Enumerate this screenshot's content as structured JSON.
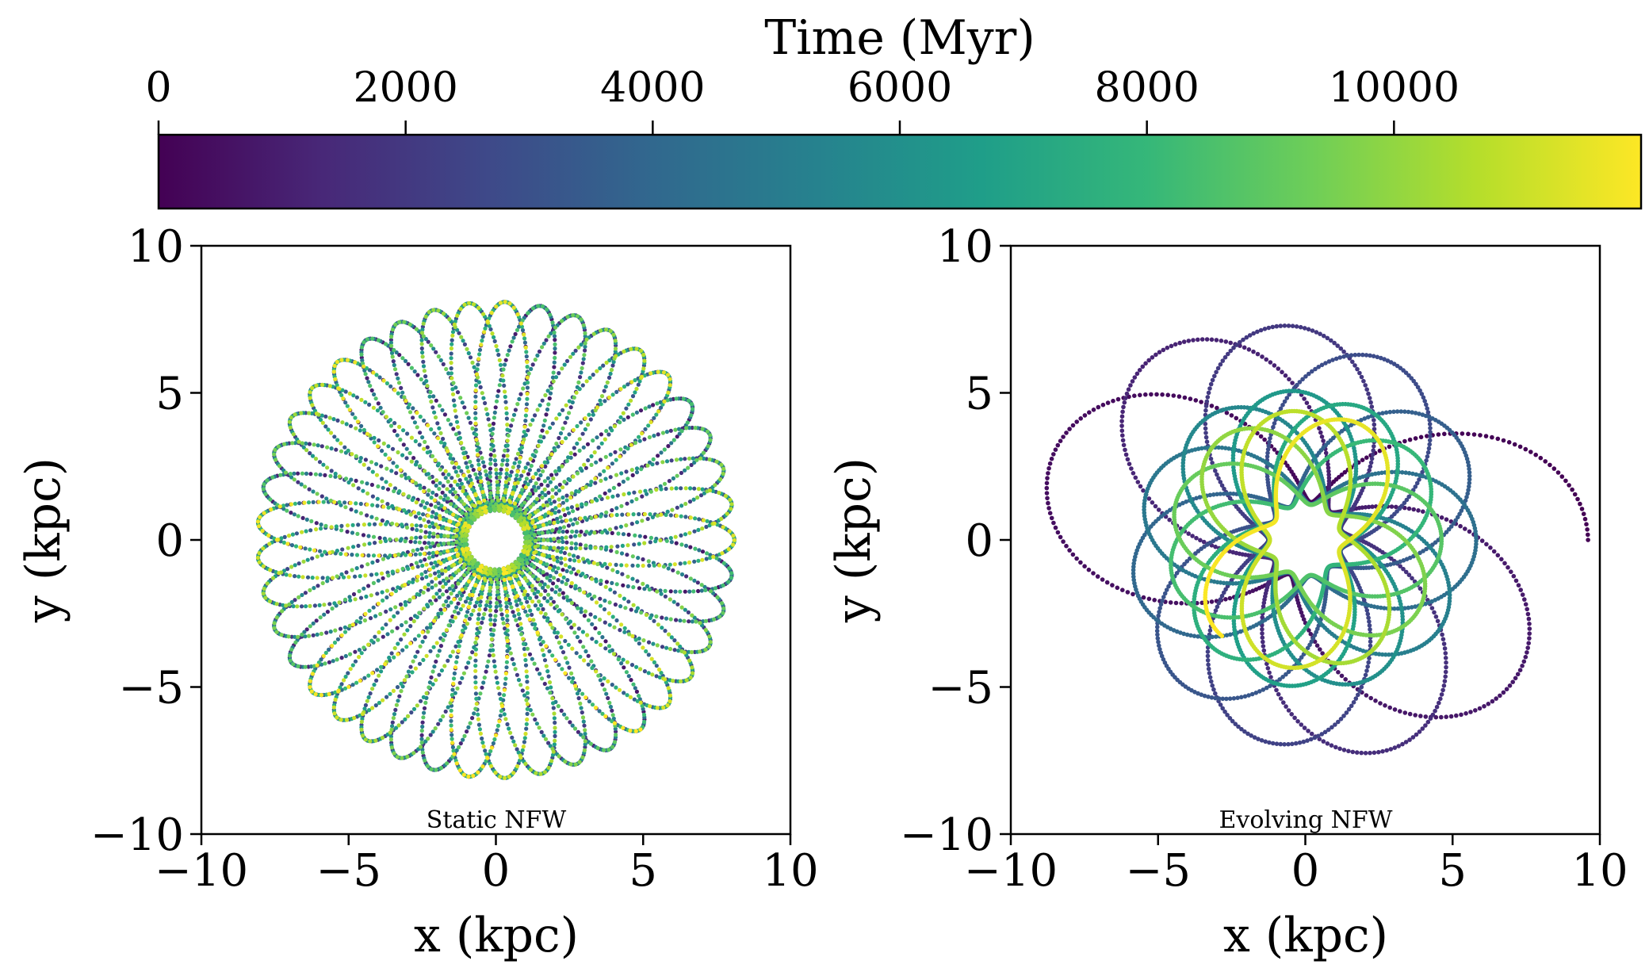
{
  "colorbar": {
    "label": "Time (Myr)",
    "range": [
      0,
      12000
    ],
    "ticks": [
      0,
      2000,
      4000,
      6000,
      8000,
      10000
    ],
    "tick_labels": [
      "0",
      "2000",
      "4000",
      "6000",
      "8000",
      "10000"
    ],
    "colormap": "viridis",
    "colormap_stops": [
      "#440154",
      "#482878",
      "#3e4989",
      "#31688e",
      "#26828e",
      "#1f9e89",
      "#35b779",
      "#6ece58",
      "#b5de2b",
      "#fde725"
    ]
  },
  "chart_data": [
    {
      "type": "scatter",
      "annotation": "Static NFW",
      "xlabel": "x (kpc)",
      "ylabel": "y (kpc)",
      "xlim": [
        -10,
        10
      ],
      "ylim": [
        -10,
        10
      ],
      "xticks": [
        "−10",
        "−5",
        "0",
        "5",
        "10"
      ],
      "yticks": [
        "−10",
        "−5",
        "0",
        "5",
        "10"
      ],
      "grid": false,
      "orbit": {
        "r_min": 1.0,
        "r_max": 8.1,
        "time_range": [
          0,
          12000
        ],
        "radial_periods": 130,
        "petals_per_turn": 8.2,
        "colored_by": "time"
      }
    },
    {
      "type": "scatter",
      "annotation": "Evolving NFW",
      "xlabel": "x (kpc)",
      "ylabel": "y (kpc)",
      "xlim": [
        -10,
        10
      ],
      "ylim": [
        -10,
        10
      ],
      "xticks": [
        "−10",
        "−5",
        "0",
        "5",
        "10"
      ],
      "yticks": [
        "−10",
        "−5",
        "0",
        "5",
        "10"
      ],
      "grid": false,
      "orbit": {
        "r_min_start": 1.3,
        "r_max_start": 9.6,
        "r_min_end": 1.2,
        "r_max_end": 4.1,
        "start_point": [
          8.0,
          0.0
        ],
        "time_range": [
          0,
          12000
        ],
        "radial_periods": 30,
        "petals_per_turn": 2.2,
        "colored_by": "time"
      }
    }
  ]
}
